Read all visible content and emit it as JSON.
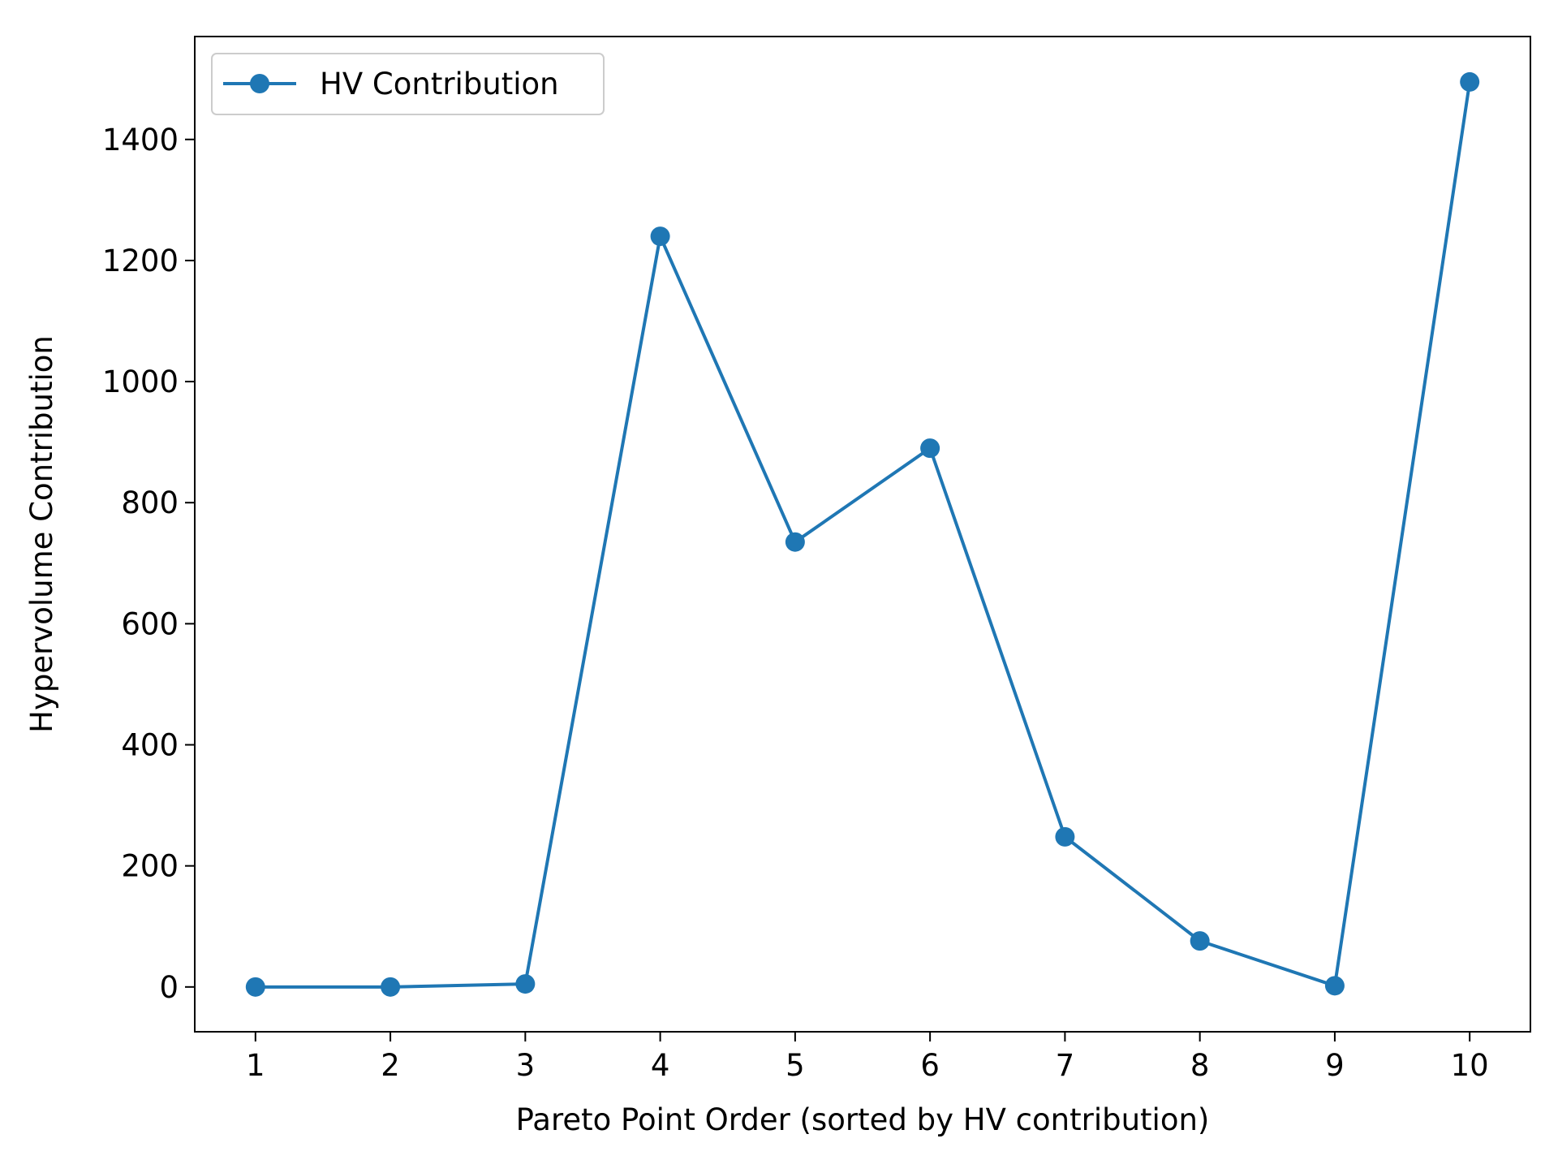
{
  "chart_data": {
    "type": "line",
    "title": "",
    "xlabel": "Pareto Point Order (sorted by HV contribution)",
    "ylabel": "Hypervolume Contribution",
    "xlim": [
      0.55,
      10.45
    ],
    "ylim": [
      -74,
      1570
    ],
    "x_ticks": [
      1,
      2,
      3,
      4,
      5,
      6,
      7,
      8,
      9,
      10
    ],
    "x_tick_labels": [
      "1",
      "2",
      "3",
      "4",
      "5",
      "6",
      "7",
      "8",
      "9",
      "10"
    ],
    "y_ticks": [
      0,
      200,
      400,
      600,
      800,
      1000,
      1200,
      1400
    ],
    "y_tick_labels": [
      "0",
      "200",
      "400",
      "600",
      "800",
      "1000",
      "1200",
      "1400"
    ],
    "grid": false,
    "legend": {
      "placement": "top-left"
    },
    "series": [
      {
        "name": "HV Contribution",
        "color": "#1f77b4",
        "marker": "circle",
        "x": [
          1,
          2,
          3,
          4,
          5,
          6,
          7,
          8,
          9,
          10
        ],
        "y": [
          0,
          0,
          5,
          1240,
          735,
          890,
          248,
          76,
          2,
          1495
        ]
      }
    ]
  }
}
